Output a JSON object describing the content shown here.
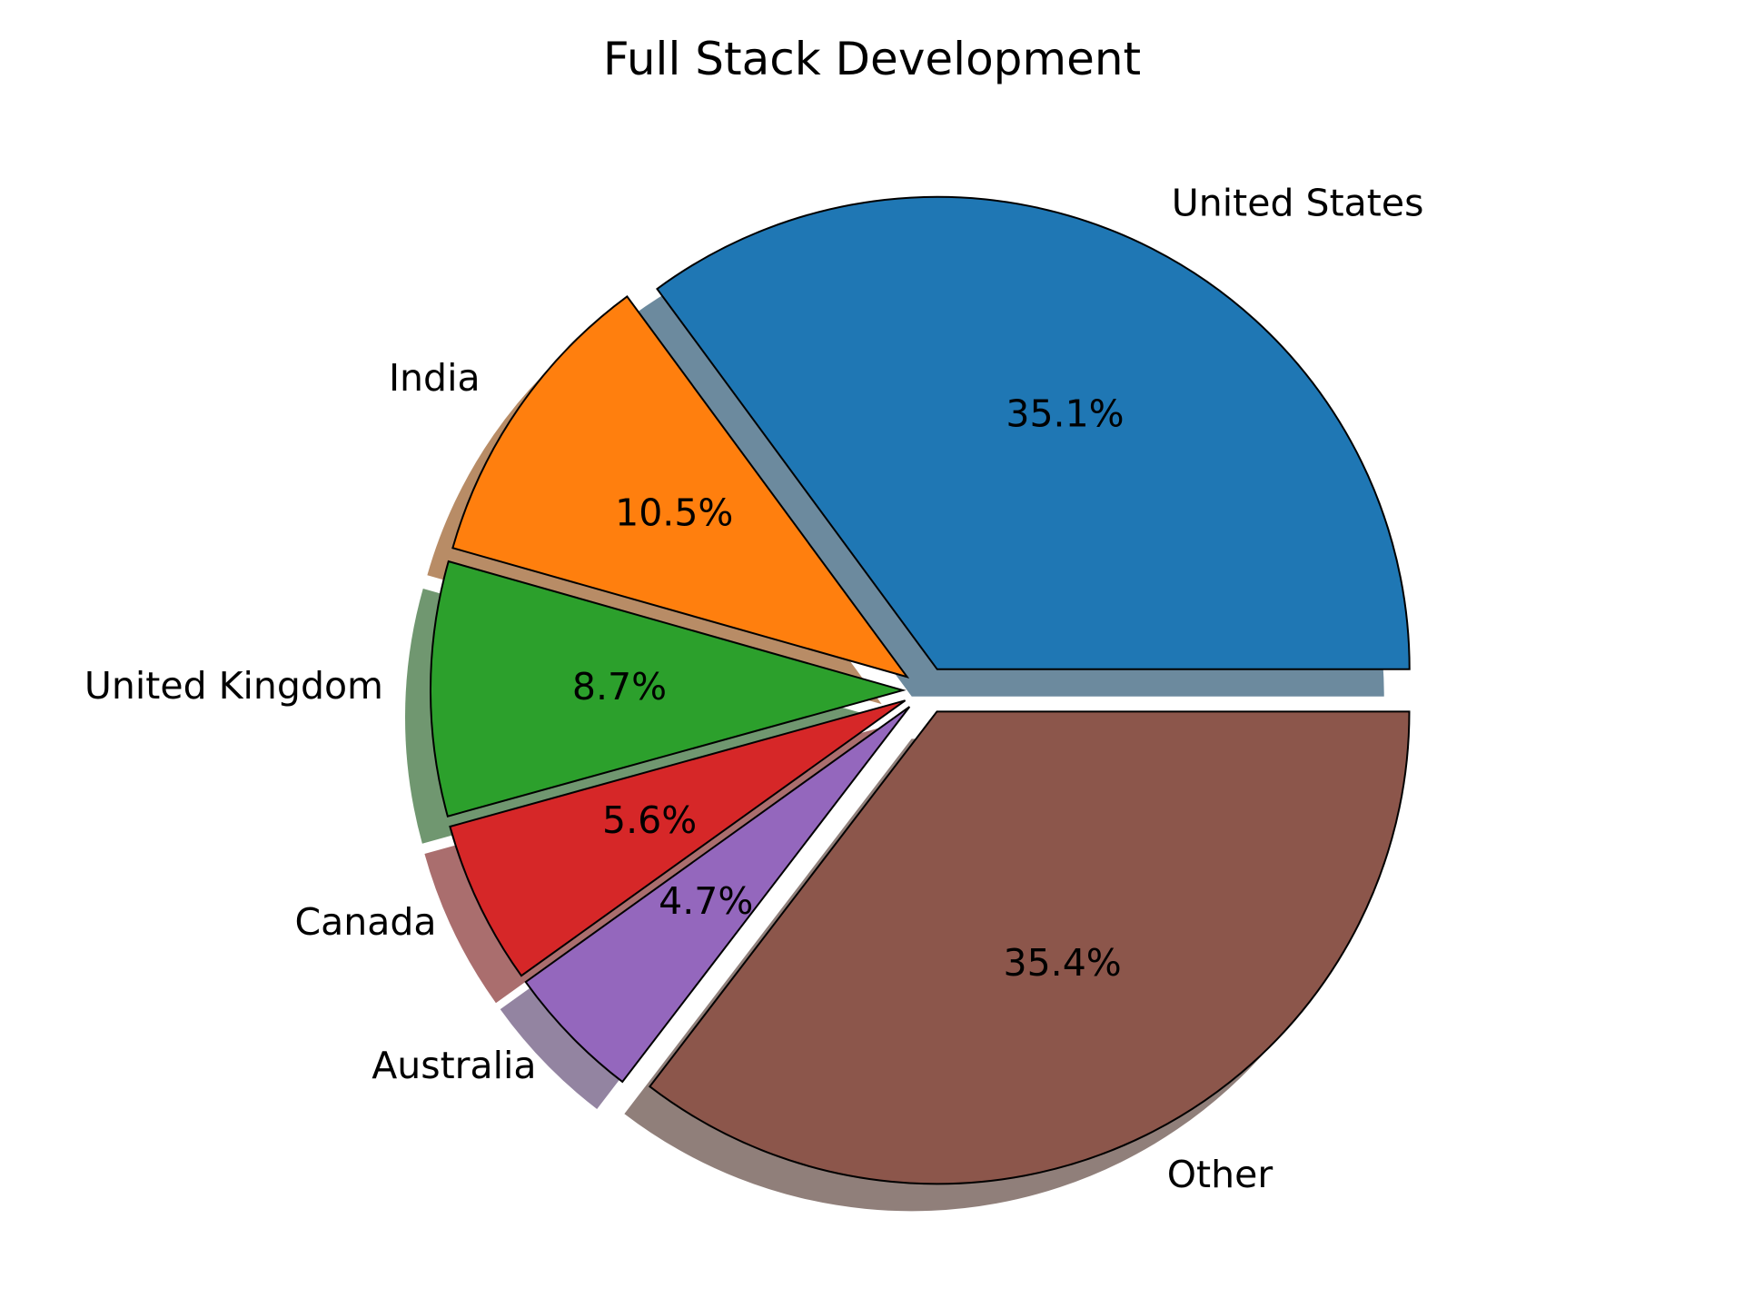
{
  "chart_data": {
    "type": "pie",
    "title": "Full Stack Development",
    "categories": [
      "United States",
      "India",
      "United Kingdom",
      "Canada",
      "Australia",
      "Other"
    ],
    "values": [
      35.1,
      10.5,
      8.7,
      5.6,
      4.7,
      35.4
    ],
    "value_labels": [
      "35.1%",
      "10.5%",
      "8.7%",
      "5.6%",
      "4.7%",
      "35.4%"
    ],
    "colors": [
      "#1f77b4",
      "#ff7f0e",
      "#2ca02c",
      "#d62728",
      "#9467bd",
      "#8c564b"
    ],
    "start_angle_deg": 0,
    "direction": "counterclockwise",
    "explode": [
      0.05,
      0.05,
      0.05,
      0.05,
      0.05,
      0.05
    ],
    "shadow": true,
    "edgecolor": "#000000",
    "legend": "none"
  }
}
